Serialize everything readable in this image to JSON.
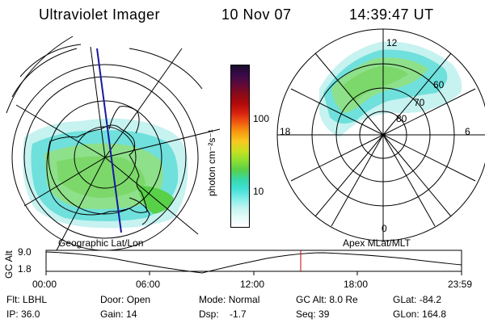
{
  "header": {
    "instrument": "Ultraviolet Imager",
    "date": "10 Nov 07",
    "time": "14:39:47 UT"
  },
  "colorbar": {
    "unit_label": "photon cm⁻²s⁻¹",
    "ticks": [
      "100",
      "10"
    ],
    "colors": [
      "#1a0a2e",
      "#3a0a4a",
      "#600a3a",
      "#8a0a1a",
      "#b00a0a",
      "#d82010",
      "#f05a10",
      "#f89a10",
      "#f8c820",
      "#c8e020",
      "#90e030",
      "#58d048",
      "#38d8a8",
      "#40e0d8",
      "#80ece8",
      "#c0f4f0",
      "#e6faf8",
      "#ffffff"
    ]
  },
  "left_map": {
    "label": "Geographic Lat/Lon"
  },
  "right_map": {
    "label": "Apex MLat/MLT",
    "mlt_labels": {
      "top": "12",
      "left": "18",
      "right": "6",
      "bottom": "0"
    },
    "lat_labels": [
      "60",
      "70",
      "80"
    ]
  },
  "altitude_plot": {
    "ylabel": "GC Alt",
    "yticks": [
      "9.0",
      "1.8"
    ],
    "xticks": [
      "00:00",
      "06:00",
      "12:00",
      "18:00",
      "23:59"
    ]
  },
  "status": {
    "row1": [
      {
        "label": "Flt:",
        "value": "LBHL"
      },
      {
        "label": "Door:",
        "value": "Open"
      },
      {
        "label": "Mode:",
        "value": "Normal"
      },
      {
        "label": "GC Alt:",
        "value": "8.0 Re"
      },
      {
        "label": "GLat:",
        "value": "-84.2"
      }
    ],
    "row2": [
      {
        "label": "IP:",
        "value": "36.0"
      },
      {
        "label": "Gain:",
        "value": "14"
      },
      {
        "label": "Dsp:",
        "value": "   -1.7"
      },
      {
        "label": "Seq:",
        "value": "39"
      },
      {
        "label": "GLon:",
        "value": "164.8"
      }
    ]
  }
}
